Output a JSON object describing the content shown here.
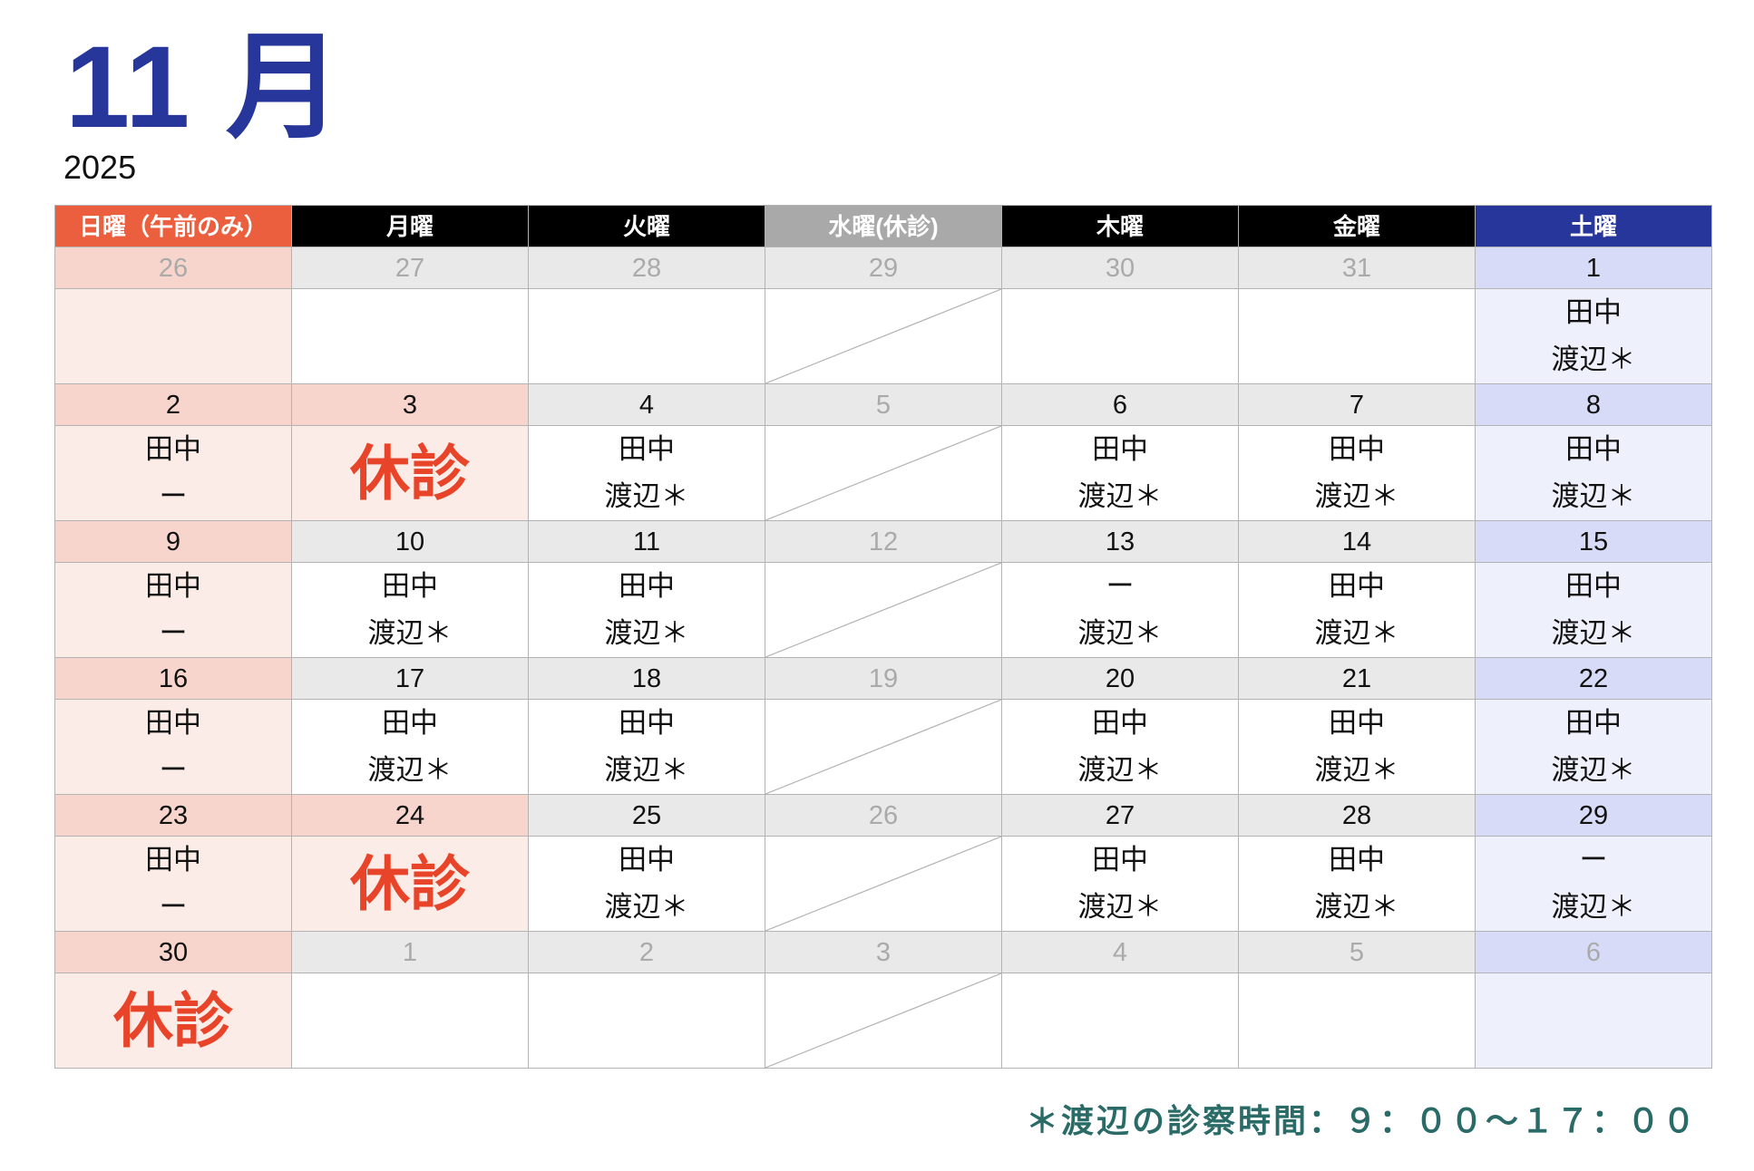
{
  "header": {
    "month_title": "11 月",
    "year": "2025"
  },
  "colors": {
    "title": "#26369a",
    "sunday": "#ec5f3e",
    "weekday": "#000000",
    "wednesday": "#a9a9a9",
    "saturday": "#27369a",
    "closed_text": "#e8442a",
    "footer": "#2a6b68"
  },
  "weekdays": [
    {
      "label": "日曜（午前のみ）",
      "color": "#ec5f3e"
    },
    {
      "label": "月曜",
      "color": "#000000"
    },
    {
      "label": "火曜",
      "color": "#000000"
    },
    {
      "label": "水曜(休診)",
      "color": "#a9a9a9"
    },
    {
      "label": "木曜",
      "color": "#000000"
    },
    {
      "label": "金曜",
      "color": "#000000"
    },
    {
      "label": "土曜",
      "color": "#27369a"
    }
  ],
  "closed_label": "休診",
  "weeks": [
    [
      {
        "d": "26",
        "muted": true,
        "lines": []
      },
      {
        "d": "27",
        "muted": true,
        "lines": []
      },
      {
        "d": "28",
        "muted": true,
        "lines": []
      },
      {
        "d": "29",
        "muted": true,
        "wed": true,
        "lines": []
      },
      {
        "d": "30",
        "muted": true,
        "lines": []
      },
      {
        "d": "31",
        "muted": true,
        "lines": []
      },
      {
        "d": "1",
        "lines": [
          "田中",
          "渡辺＊"
        ]
      }
    ],
    [
      {
        "d": "2",
        "lines": [
          "田中",
          "ー"
        ]
      },
      {
        "d": "3",
        "holiday": true,
        "lines": []
      },
      {
        "d": "4",
        "lines": [
          "田中",
          "渡辺＊"
        ]
      },
      {
        "d": "5",
        "muted": true,
        "wed": true,
        "lines": []
      },
      {
        "d": "6",
        "lines": [
          "田中",
          "渡辺＊"
        ]
      },
      {
        "d": "7",
        "lines": [
          "田中",
          "渡辺＊"
        ]
      },
      {
        "d": "8",
        "lines": [
          "田中",
          "渡辺＊"
        ]
      }
    ],
    [
      {
        "d": "9",
        "lines": [
          "田中",
          "ー"
        ]
      },
      {
        "d": "10",
        "lines": [
          "田中",
          "渡辺＊"
        ]
      },
      {
        "d": "11",
        "lines": [
          "田中",
          "渡辺＊"
        ]
      },
      {
        "d": "12",
        "muted": true,
        "wed": true,
        "lines": []
      },
      {
        "d": "13",
        "lines": [
          "ー",
          "渡辺＊"
        ]
      },
      {
        "d": "14",
        "lines": [
          "田中",
          "渡辺＊"
        ]
      },
      {
        "d": "15",
        "lines": [
          "田中",
          "渡辺＊"
        ]
      }
    ],
    [
      {
        "d": "16",
        "lines": [
          "田中",
          "ー"
        ]
      },
      {
        "d": "17",
        "lines": [
          "田中",
          "渡辺＊"
        ]
      },
      {
        "d": "18",
        "lines": [
          "田中",
          "渡辺＊"
        ]
      },
      {
        "d": "19",
        "muted": true,
        "wed": true,
        "lines": []
      },
      {
        "d": "20",
        "lines": [
          "田中",
          "渡辺＊"
        ]
      },
      {
        "d": "21",
        "lines": [
          "田中",
          "渡辺＊"
        ]
      },
      {
        "d": "22",
        "lines": [
          "田中",
          "渡辺＊"
        ]
      }
    ],
    [
      {
        "d": "23",
        "lines": [
          "田中",
          "ー"
        ]
      },
      {
        "d": "24",
        "holiday": true,
        "lines": []
      },
      {
        "d": "25",
        "lines": [
          "田中",
          "渡辺＊"
        ]
      },
      {
        "d": "26",
        "muted": true,
        "wed": true,
        "lines": []
      },
      {
        "d": "27",
        "lines": [
          "田中",
          "渡辺＊"
        ]
      },
      {
        "d": "28",
        "lines": [
          "田中",
          "渡辺＊"
        ]
      },
      {
        "d": "29",
        "lines": [
          "ー",
          "渡辺＊"
        ]
      }
    ],
    [
      {
        "d": "30",
        "holiday": true,
        "lines": []
      },
      {
        "d": "1",
        "muted": true,
        "lines": []
      },
      {
        "d": "2",
        "muted": true,
        "lines": []
      },
      {
        "d": "3",
        "muted": true,
        "wed": true,
        "lines": []
      },
      {
        "d": "4",
        "muted": true,
        "lines": []
      },
      {
        "d": "5",
        "muted": true,
        "lines": []
      },
      {
        "d": "6",
        "muted": true,
        "lines": []
      }
    ]
  ],
  "footer": {
    "note": "＊渡辺の診察時間：９：００〜１７：００"
  }
}
